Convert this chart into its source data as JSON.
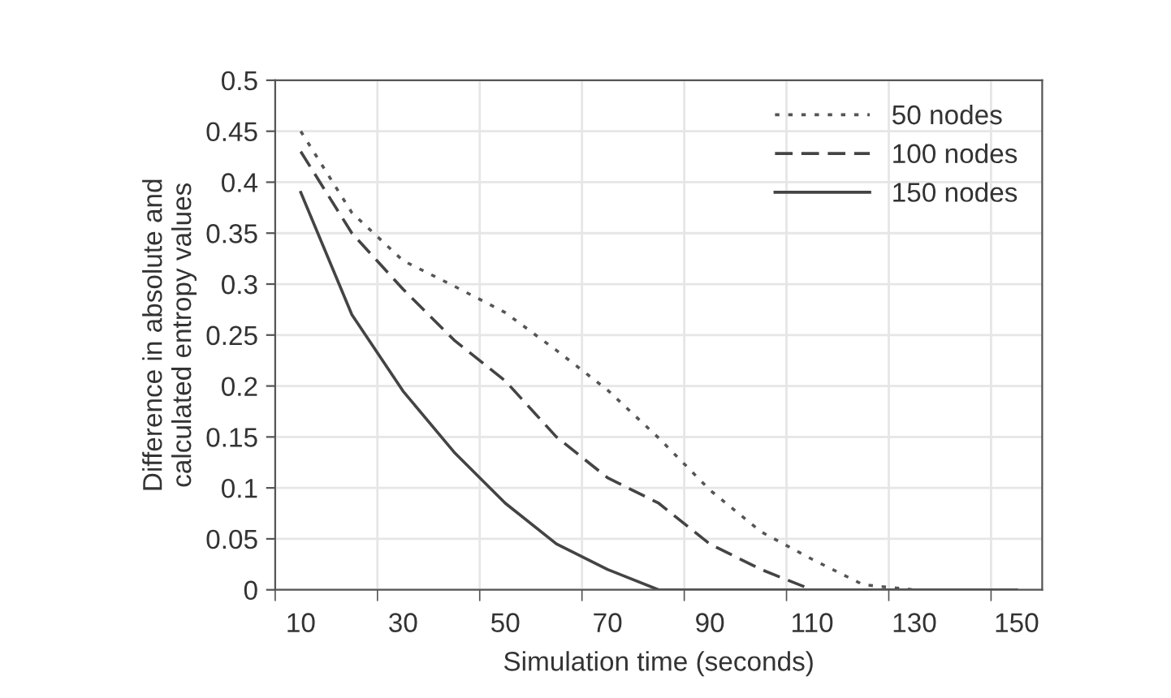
{
  "chart_data": {
    "type": "line",
    "xlabel": "Simulation time (seconds)",
    "ylabel": "Difference in absolute and\ncalculated entropy values",
    "categories": [
      "10",
      null,
      "30",
      null,
      "50",
      null,
      "70",
      null,
      "90",
      null,
      "110",
      null,
      "130",
      null,
      "150"
    ],
    "series": [
      {
        "name": "50 nodes",
        "color": "#555555",
        "line_style": "dotted",
        "values": [
          0.45,
          0.37,
          0.323,
          0.298,
          0.272,
          0.235,
          0.196,
          0.149,
          0.098,
          0.057,
          0.03,
          0.005,
          0,
          0,
          0
        ]
      },
      {
        "name": "100 nodes",
        "color": "#444444",
        "line_style": "dashed",
        "values": [
          0.43,
          0.35,
          0.295,
          0.245,
          0.205,
          0.15,
          0.11,
          0.085,
          0.045,
          0.02,
          0,
          0,
          0,
          0,
          0
        ]
      },
      {
        "name": "150 nodes",
        "color": "#444444",
        "line_style": "solid",
        "values": [
          0.39,
          0.27,
          0.195,
          0.135,
          0.085,
          0.045,
          0.02,
          0,
          0,
          0,
          0,
          0,
          0,
          0,
          0
        ]
      }
    ],
    "ylim": [
      0,
      0.5
    ],
    "yticks": [
      0,
      0.05,
      0.1,
      0.15,
      0.2,
      0.25,
      0.3,
      0.35,
      0.4,
      0.45,
      0.5
    ],
    "grid": true,
    "legend": "top right",
    "marker": "none"
  }
}
